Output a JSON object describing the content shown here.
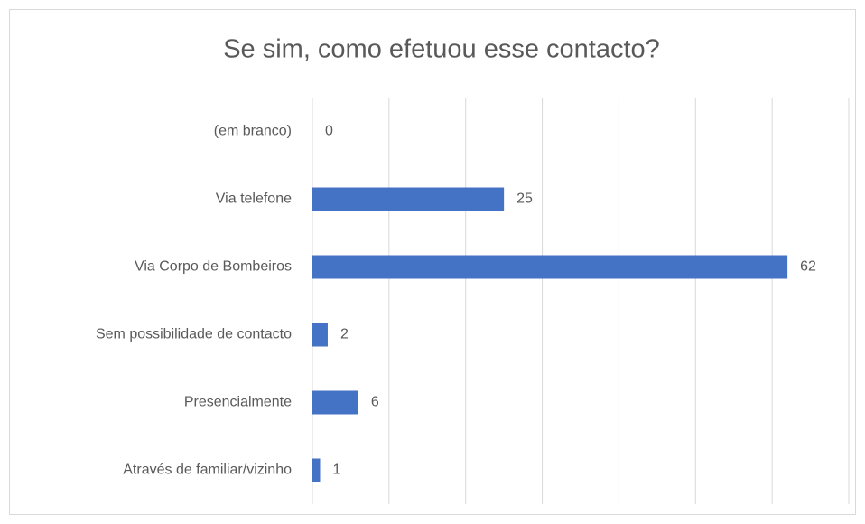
{
  "chart_data": {
    "type": "bar",
    "orientation": "horizontal",
    "title": "Se sim, como efetuou esse contacto?",
    "categories": [
      "(em branco)",
      "Via telefone",
      "Via Corpo de Bombeiros",
      "Sem possibilidade de contacto",
      "Presencialmente",
      "Através de familiar/vizinho"
    ],
    "values": [
      0,
      25,
      62,
      2,
      6,
      1
    ],
    "color": "#4472c4",
    "xlim": [
      0,
      70
    ],
    "xticks": [
      0,
      10,
      20,
      30,
      40,
      50,
      60,
      70
    ],
    "grid": true
  }
}
